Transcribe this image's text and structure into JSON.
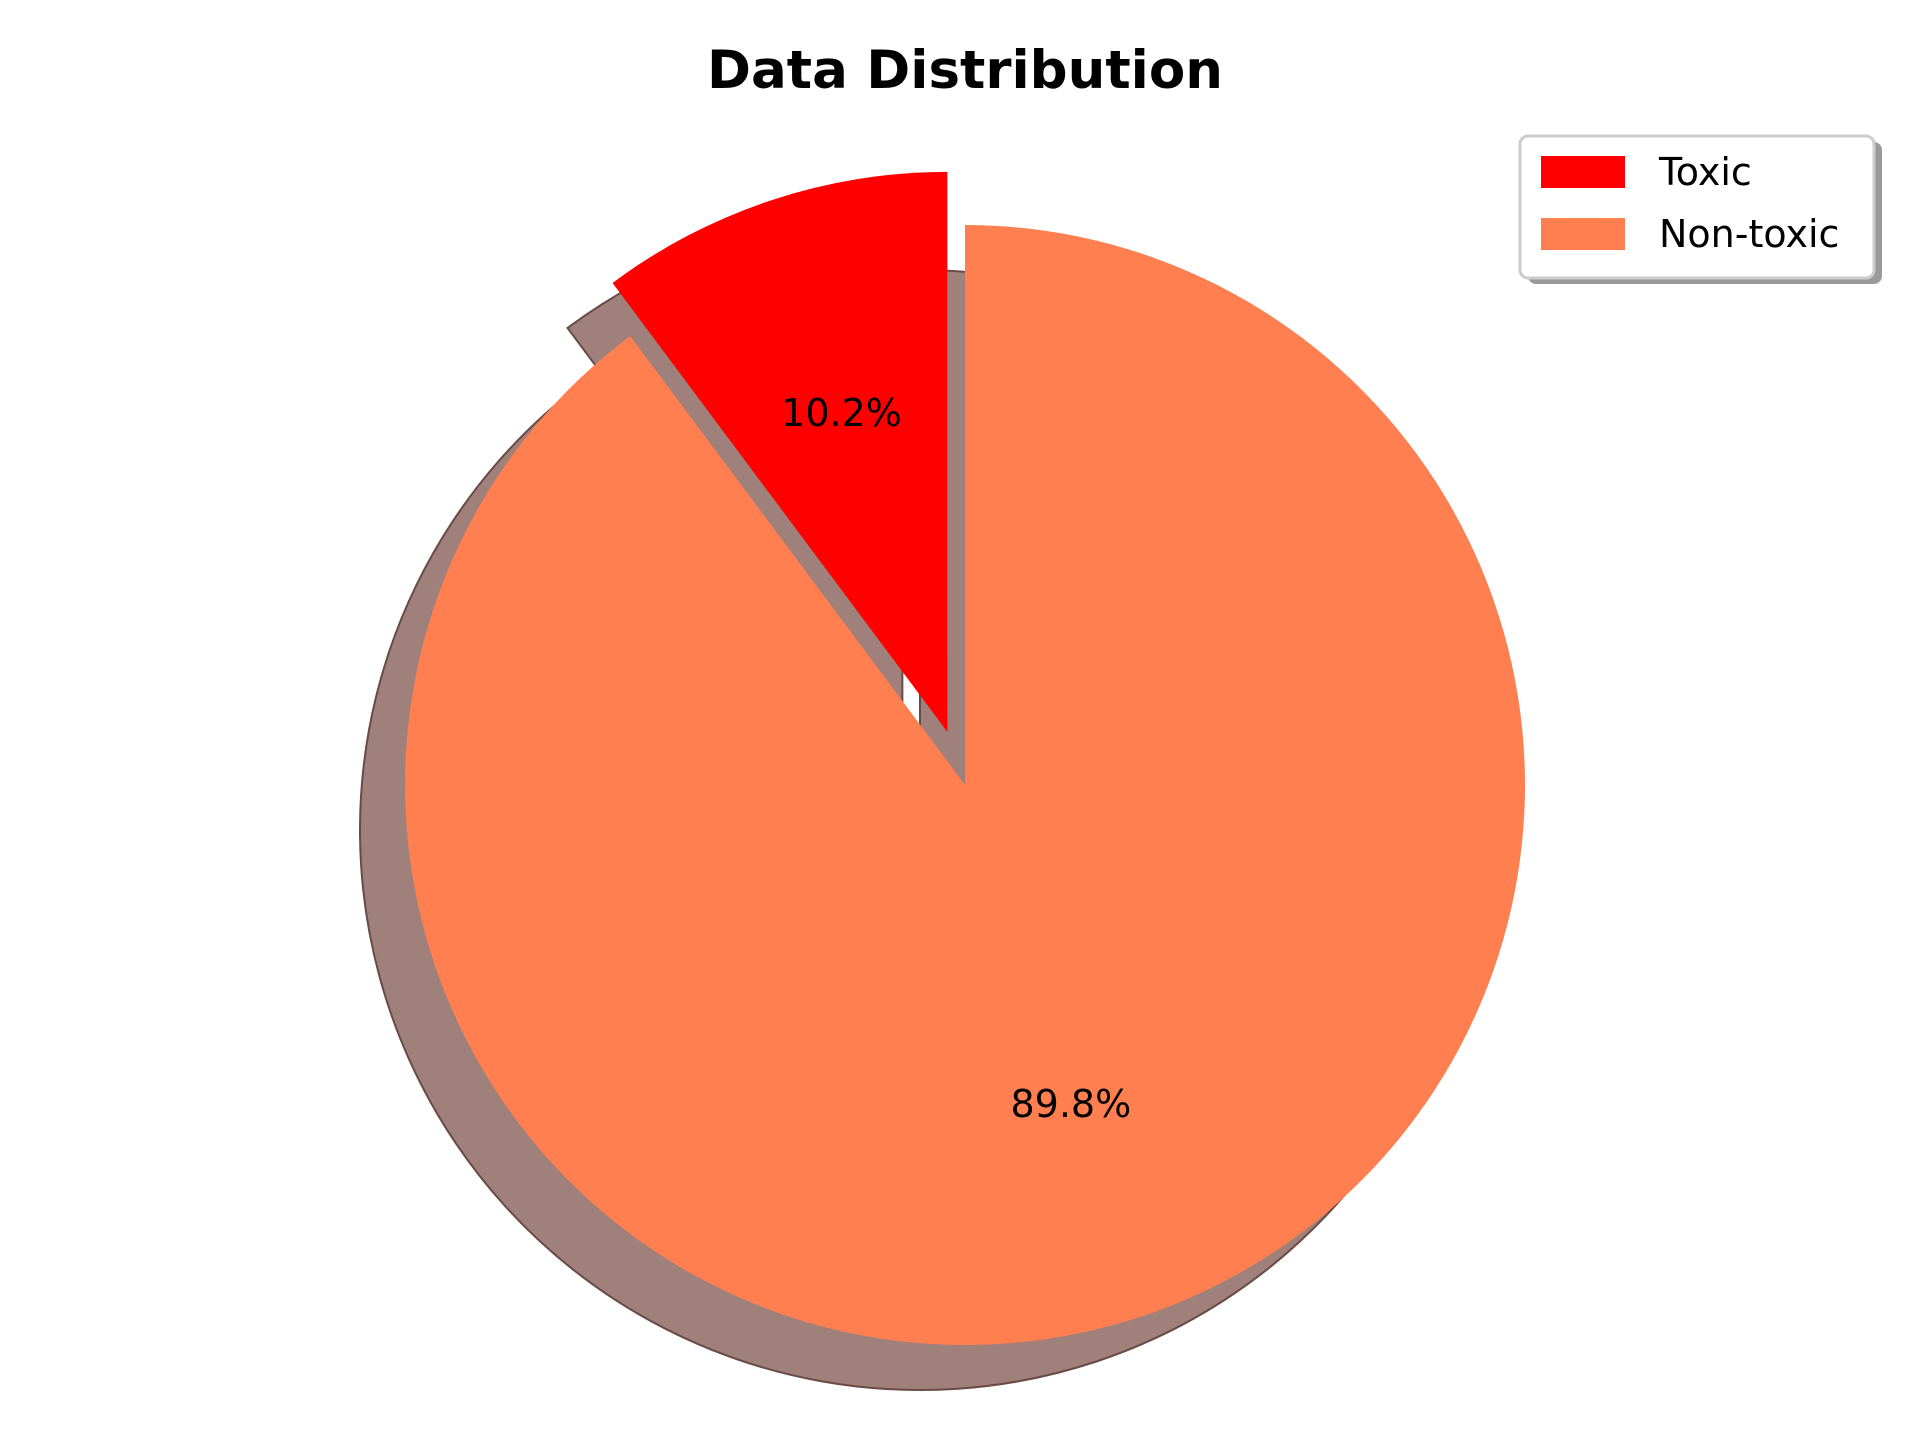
{
  "chart_data": {
    "type": "pie",
    "title": "Data Distribution",
    "categories": [
      "Toxic",
      "Non-toxic"
    ],
    "values": [
      10.2,
      89.8
    ],
    "labels": [
      "10.2%",
      "89.8%"
    ],
    "colors": [
      "#ff0000",
      "#ff7f50"
    ],
    "explode": [
      0.1,
      0
    ],
    "shadow": true,
    "start_angle_deg": 90,
    "legend": {
      "placement": "top-right",
      "entries": [
        "Toxic",
        "Non-toxic"
      ]
    }
  }
}
